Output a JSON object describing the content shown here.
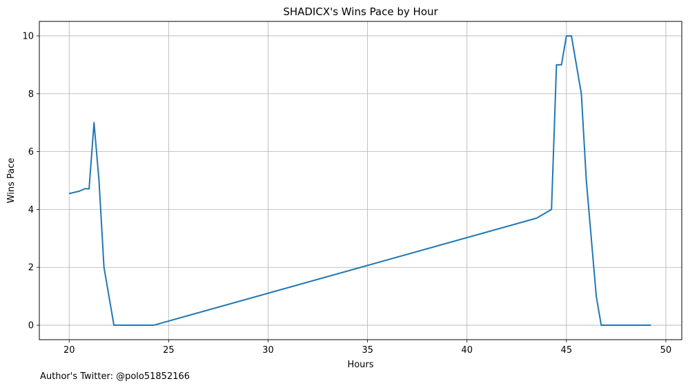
{
  "chart_data": {
    "type": "line",
    "title": "SHADICX's Wins Pace by Hour",
    "xlabel": "Hours",
    "ylabel": "Wins Pace",
    "xlim": [
      18.5,
      50.8
    ],
    "ylim": [
      -0.5,
      10.5
    ],
    "xticks": [
      20,
      25,
      30,
      35,
      40,
      45,
      50
    ],
    "yticks": [
      0,
      2,
      4,
      6,
      8,
      10
    ],
    "grid": true,
    "series": [
      {
        "color": "#1f77b4",
        "x": [
          20.0,
          20.5,
          20.8,
          21.0,
          21.25,
          21.5,
          21.75,
          22.25,
          24.25,
          43.5,
          44.25,
          44.5,
          44.75,
          45.0,
          45.25,
          45.75,
          46.0,
          46.5,
          46.75,
          49.25
        ],
        "y": [
          4.55,
          4.63,
          4.72,
          4.71,
          7.0,
          5.0,
          2.0,
          0.0,
          0.0,
          3.7,
          4.0,
          9.0,
          9.0,
          10.0,
          10.0,
          8.0,
          5.0,
          1.0,
          0.0,
          0.0
        ]
      }
    ]
  },
  "footer": {
    "credit": "Author's Twitter: @polo51852166"
  }
}
